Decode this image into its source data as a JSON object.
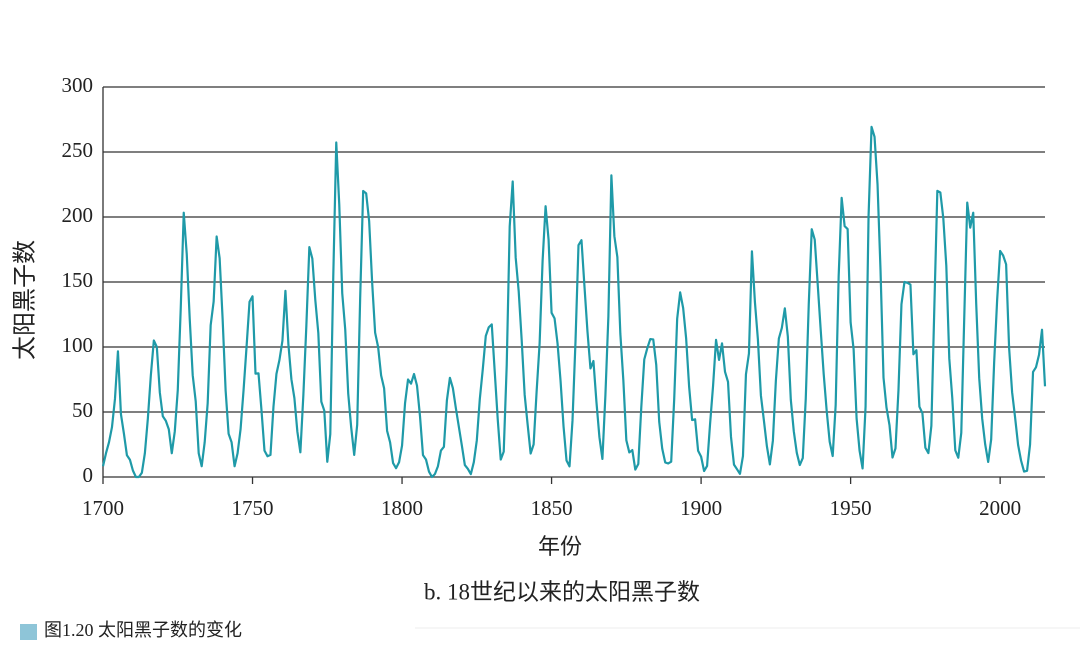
{
  "chart_data": {
    "type": "line",
    "title": "b. 18世纪以来的太阳黑子数",
    "xlabel": "年份",
    "ylabel": "太阳黑子数",
    "color": "#1f9aa8",
    "xlim": [
      1700,
      2015
    ],
    "ylim": [
      0,
      300
    ],
    "xticks": [
      1700,
      1750,
      1800,
      1850,
      1900,
      1950,
      2000
    ],
    "yticks": [
      0,
      50,
      100,
      150,
      200,
      250,
      300
    ],
    "grid": true,
    "x": [
      1700,
      1701,
      1702,
      1703,
      1704,
      1705,
      1706,
      1707,
      1708,
      1709,
      1710,
      1711,
      1712,
      1713,
      1714,
      1715,
      1716,
      1717,
      1718,
      1719,
      1720,
      1721,
      1722,
      1723,
      1724,
      1725,
      1726,
      1727,
      1728,
      1729,
      1730,
      1731,
      1732,
      1733,
      1734,
      1735,
      1736,
      1737,
      1738,
      1739,
      1740,
      1741,
      1742,
      1743,
      1744,
      1745,
      1746,
      1747,
      1748,
      1749,
      1750,
      1751,
      1752,
      1753,
      1754,
      1755,
      1756,
      1757,
      1758,
      1759,
      1760,
      1761,
      1762,
      1763,
      1764,
      1765,
      1766,
      1767,
      1768,
      1769,
      1770,
      1771,
      1772,
      1773,
      1774,
      1775,
      1776,
      1777,
      1778,
      1779,
      1780,
      1781,
      1782,
      1783,
      1784,
      1785,
      1786,
      1787,
      1788,
      1789,
      1790,
      1791,
      1792,
      1793,
      1794,
      1795,
      1796,
      1797,
      1798,
      1799,
      1800,
      1801,
      1802,
      1803,
      1804,
      1805,
      1806,
      1807,
      1808,
      1809,
      1810,
      1811,
      1812,
      1813,
      1814,
      1815,
      1816,
      1817,
      1818,
      1819,
      1820,
      1821,
      1822,
      1823,
      1824,
      1825,
      1826,
      1827,
      1828,
      1829,
      1830,
      1831,
      1832,
      1833,
      1834,
      1835,
      1836,
      1837,
      1838,
      1839,
      1840,
      1841,
      1842,
      1843,
      1844,
      1845,
      1846,
      1847,
      1848,
      1849,
      1850,
      1851,
      1852,
      1853,
      1854,
      1855,
      1856,
      1857,
      1858,
      1859,
      1860,
      1861,
      1862,
      1863,
      1864,
      1865,
      1866,
      1867,
      1868,
      1869,
      1870,
      1871,
      1872,
      1873,
      1874,
      1875,
      1876,
      1877,
      1878,
      1879,
      1880,
      1881,
      1882,
      1883,
      1884,
      1885,
      1886,
      1887,
      1888,
      1889,
      1890,
      1891,
      1892,
      1893,
      1894,
      1895,
      1896,
      1897,
      1898,
      1899,
      1900,
      1901,
      1902,
      1903,
      1904,
      1905,
      1906,
      1907,
      1908,
      1909,
      1910,
      1911,
      1912,
      1913,
      1914,
      1915,
      1916,
      1917,
      1918,
      1919,
      1920,
      1921,
      1922,
      1923,
      1924,
      1925,
      1926,
      1927,
      1928,
      1929,
      1930,
      1931,
      1932,
      1933,
      1934,
      1935,
      1936,
      1937,
      1938,
      1939,
      1940,
      1941,
      1942,
      1943,
      1944,
      1945,
      1946,
      1947,
      1948,
      1949,
      1950,
      1951,
      1952,
      1953,
      1954,
      1955,
      1956,
      1957,
      1958,
      1959,
      1960,
      1961,
      1962,
      1963,
      1964,
      1965,
      1966,
      1967,
      1968,
      1969,
      1970,
      1971,
      1972,
      1973,
      1974,
      1975,
      1976,
      1977,
      1978,
      1979,
      1980,
      1981,
      1982,
      1983,
      1984,
      1985,
      1986,
      1987,
      1988,
      1989,
      1990,
      1991,
      1992,
      1993,
      1994,
      1995,
      1996,
      1997,
      1998,
      1999,
      2000,
      2001,
      2002,
      2003,
      2004,
      2005,
      2006,
      2007,
      2008,
      2009,
      2010,
      2011,
      2012,
      2013,
      2014,
      2015
    ],
    "values": [
      8.3,
      18.3,
      26.7,
      38.3,
      60,
      96.7,
      48.3,
      33.3,
      16.7,
      13.3,
      5,
      0,
      0,
      3.3,
      18.3,
      45,
      78.3,
      105,
      100,
      65,
      46.7,
      43.3,
      36.7,
      18.3,
      35,
      66.7,
      130,
      203.3,
      171.7,
      121.7,
      78.3,
      58.3,
      18.3,
      8.3,
      26.7,
      56.7,
      116.7,
      135,
      185,
      168.3,
      121.7,
      66.7,
      33.3,
      26.7,
      8.3,
      18.3,
      36.7,
      66.7,
      100,
      134.8,
      139,
      79.5,
      79.7,
      51.2,
      20.3,
      16,
      17,
      54,
      79.3,
      90,
      104.8,
      143.2,
      102,
      75.2,
      60.7,
      34.8,
      19,
      63,
      116.3,
      176.8,
      168,
      136,
      110.8,
      58,
      51,
      11.7,
      33,
      154.2,
      257.3,
      209.8,
      141.3,
      113.5,
      64.2,
      38,
      17,
      40.2,
      138.2,
      220,
      218.2,
      196.8,
      149.8,
      111,
      100,
      78.2,
      68.3,
      35.5,
      26.7,
      10.7,
      6.8,
      11.3,
      24.2,
      56.7,
      75,
      71.8,
      79.2,
      70.3,
      46.8,
      16.8,
      13.5,
      4.2,
      0,
      2.3,
      8.3,
      20.3,
      23.2,
      59,
      76.3,
      68.3,
      52.9,
      38.5,
      24.2,
      9.2,
      6.3,
      2.2,
      11.4,
      28.2,
      59.9,
      83,
      108.5,
      115.2,
      117.4,
      80.8,
      44.3,
      13.4,
      19.5,
      85.8,
      192.7,
      227.3,
      168.7,
      143,
      105.5,
      63.3,
      40.3,
      18.1,
      25.1,
      65.8,
      102.7,
      166.3,
      208.3,
      182.5,
      126.3,
      122,
      102.7,
      74.1,
      39,
      12.7,
      8.2,
      43.4,
      104.4,
      178.3,
      182.2,
      146.6,
      112.1,
      83.5,
      89.2,
      57.8,
      30.7,
      13.9,
      62.8,
      123.6,
      232,
      185.3,
      169.2,
      110.1,
      74.5,
      28.3,
      18.9,
      20.7,
      5.7,
      10,
      53.7,
      90.5,
      99,
      106.1,
      105.8,
      86.3,
      42.4,
      21.8,
      11.2,
      10.4,
      11.8,
      59.5,
      121.7,
      142,
      130,
      106.6,
      69.4,
      43.8,
      44.4,
      20.2,
      15.7,
      4.6,
      8.5,
      40.8,
      70.1,
      105.5,
      90.1,
      102.8,
      80.9,
      73.2,
      30.9,
      9.5,
      6,
      2.4,
      16.1,
      79,
      95,
      173.6,
      134.6,
      105.7,
      62.7,
      43.5,
      23.7,
      9.7,
      27.9,
      74,
      106.5,
      114.7,
      129.7,
      108.2,
      59.4,
      35.1,
      18.6,
      9.2,
      14.6,
      60.2,
      132.8,
      190.6,
      182.6,
      148,
      113,
      79.2,
      50.8,
      27.1,
      16.1,
      55.3,
      154.3,
      214.7,
      193,
      190.7,
      118.9,
      98.3,
      45,
      20.1,
      6.6,
      54.2,
      200.7,
      269.3,
      261.7,
      225.1,
      159,
      76.4,
      53.4,
      39.9,
      15,
      22,
      66.8,
      132.9,
      150,
      149.4,
      148,
      94.4,
      97.6,
      54.1,
      49.2,
      22.5,
      18.4,
      39.3,
      131,
      220.1,
      218.9,
      198.9,
      162.4,
      91,
      60.5,
      20.6,
      14.8,
      33.9,
      123,
      211.1,
      191.8,
      203.3,
      133,
      76.1,
      44.9,
      25.1,
      11.6,
      28.9,
      88.3,
      136.3,
      173.9,
      170.4,
      163.6,
      99.3,
      65.3,
      45.8,
      24.7,
      12.6,
      4.2,
      4.8,
      24.9,
      80.8,
      84.5,
      94,
      113.3,
      69.8
    ]
  },
  "caption": "图1.20  太阳黑子数的变化"
}
